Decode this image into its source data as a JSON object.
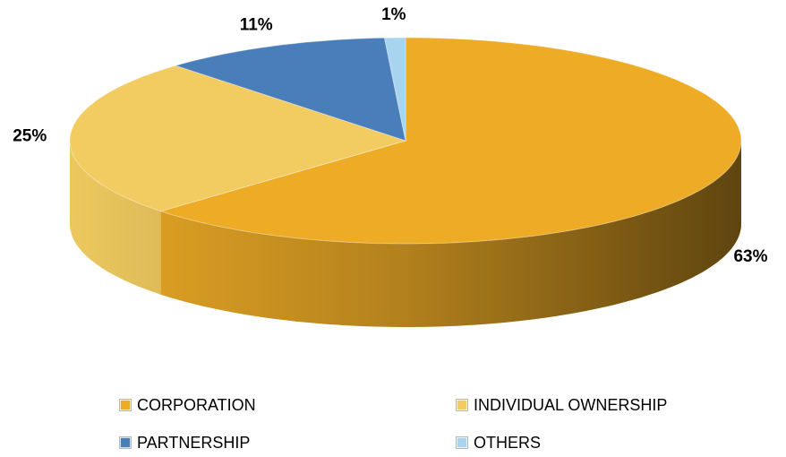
{
  "chart_data": {
    "type": "pie",
    "categories": [
      "CORPORATION",
      "INDIVIDUAL OWNERSHIP",
      "PARTNERSHIP",
      "OTHERS"
    ],
    "values": [
      63,
      25,
      11,
      1
    ],
    "value_labels": [
      "63%",
      "25%",
      "11%",
      "1%"
    ],
    "colors": [
      "#EDAB26",
      "#F2CC60",
      "#4A7EBB",
      "#A9D4F0"
    ],
    "legend": "bottom"
  }
}
